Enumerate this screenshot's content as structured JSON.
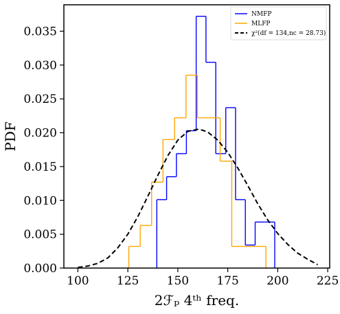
{
  "chart_data": {
    "type": "histogram",
    "xlabel": "2ℱₚ 4ᵗʰ freq.",
    "ylabel": "PDF",
    "xlim": [
      93,
      226
    ],
    "ylim": [
      0,
      0.0389
    ],
    "xticks": [
      100,
      125,
      150,
      175,
      200,
      225
    ],
    "yticks": [
      0.0,
      0.005,
      0.01,
      0.015,
      0.02,
      0.025,
      0.03,
      0.035
    ],
    "ytick_labels": [
      "0.000",
      "0.005",
      "0.010",
      "0.015",
      "0.020",
      "0.025",
      "0.030",
      "0.035"
    ],
    "grid": false,
    "legend_position": "top-right",
    "series": [
      {
        "name": "NMFP",
        "kind": "step",
        "color": "#0000ff",
        "edges": [
          139.5,
          144.4,
          149.3,
          154.3,
          159.2,
          164.1,
          169.0,
          174.0,
          178.9,
          183.8,
          188.7,
          193.6,
          198.5
        ],
        "values": [
          0.0101,
          0.0135,
          0.0169,
          0.0203,
          0.0372,
          0.0304,
          0.0169,
          0.0237,
          0.0101,
          0.0034,
          0.0068,
          0.0068
        ]
      },
      {
        "name": "MLFP",
        "kind": "step",
        "color": "#ffa500",
        "edges": [
          125.5,
          131.2,
          136.9,
          142.6,
          148.4,
          154.1,
          159.8,
          165.5,
          171.2,
          177.0,
          182.7,
          188.4,
          194.1
        ],
        "values": [
          0.0032,
          0.0063,
          0.0127,
          0.019,
          0.0222,
          0.0285,
          0.0222,
          0.0222,
          0.0158,
          0.0032,
          0.0032,
          0.0032
        ]
      },
      {
        "name": "χ²(df = 134,nc = 28.73)",
        "kind": "curve",
        "color": "#000000",
        "dashed": true,
        "x": [
          100,
          105,
          110,
          115,
          120,
          125,
          130,
          135,
          140,
          145,
          150,
          155,
          160,
          162,
          165,
          170,
          175,
          180,
          185,
          190,
          195,
          200,
          205,
          210,
          215,
          220
        ],
        "y": [
          0.0001,
          0.0003,
          0.0007,
          0.0015,
          0.003,
          0.005,
          0.0076,
          0.0106,
          0.0137,
          0.0166,
          0.0189,
          0.0202,
          0.0205,
          0.0204,
          0.0201,
          0.0189,
          0.0171,
          0.0148,
          0.0122,
          0.0095,
          0.0071,
          0.0051,
          0.0035,
          0.0022,
          0.0013,
          0.0005
        ]
      }
    ]
  }
}
